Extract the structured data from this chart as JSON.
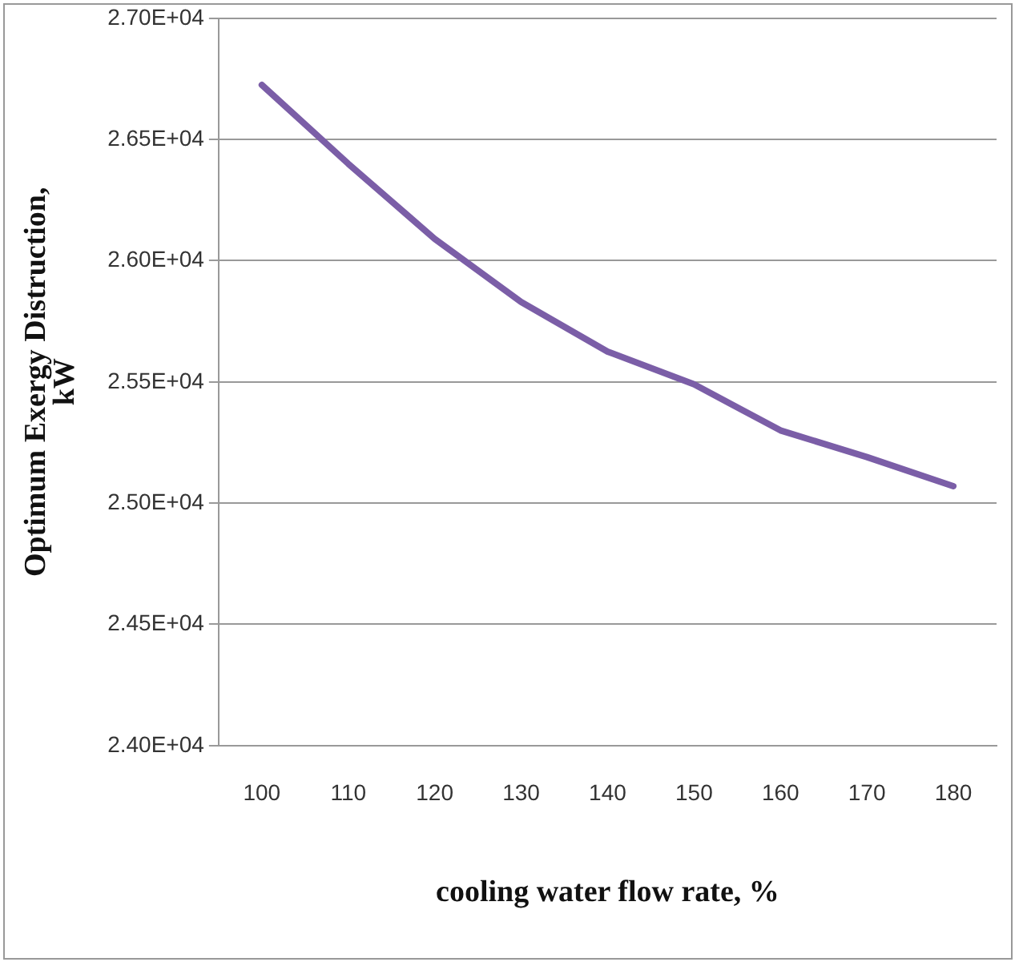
{
  "chart_data": {
    "type": "line",
    "xlabel": "cooling water flow rate, %",
    "ylabel": "Optimum Exergy Distruction, kW",
    "categories": [
      "100",
      "110",
      "120",
      "130",
      "140",
      "150",
      "160",
      "170",
      "180"
    ],
    "series": [
      {
        "color": "#7b5ea7",
        "values": [
          26725,
          26400,
          26090,
          25830,
          25625,
          25490,
          25300,
          25190,
          25070
        ]
      }
    ],
    "ylim": [
      24000,
      27000
    ],
    "yticks": [
      {
        "value": 24000,
        "label": "2.40E+04"
      },
      {
        "value": 24500,
        "label": "2.45E+04"
      },
      {
        "value": 25000,
        "label": "2.50E+04"
      },
      {
        "value": 25500,
        "label": "2.55E+04"
      },
      {
        "value": 26000,
        "label": "2.60E+04"
      },
      {
        "value": 26500,
        "label": "2.65E+04"
      },
      {
        "value": 27000,
        "label": "2.70E+04"
      }
    ],
    "grid": "y",
    "legend": false,
    "marker": "none",
    "line_style": "solid"
  }
}
